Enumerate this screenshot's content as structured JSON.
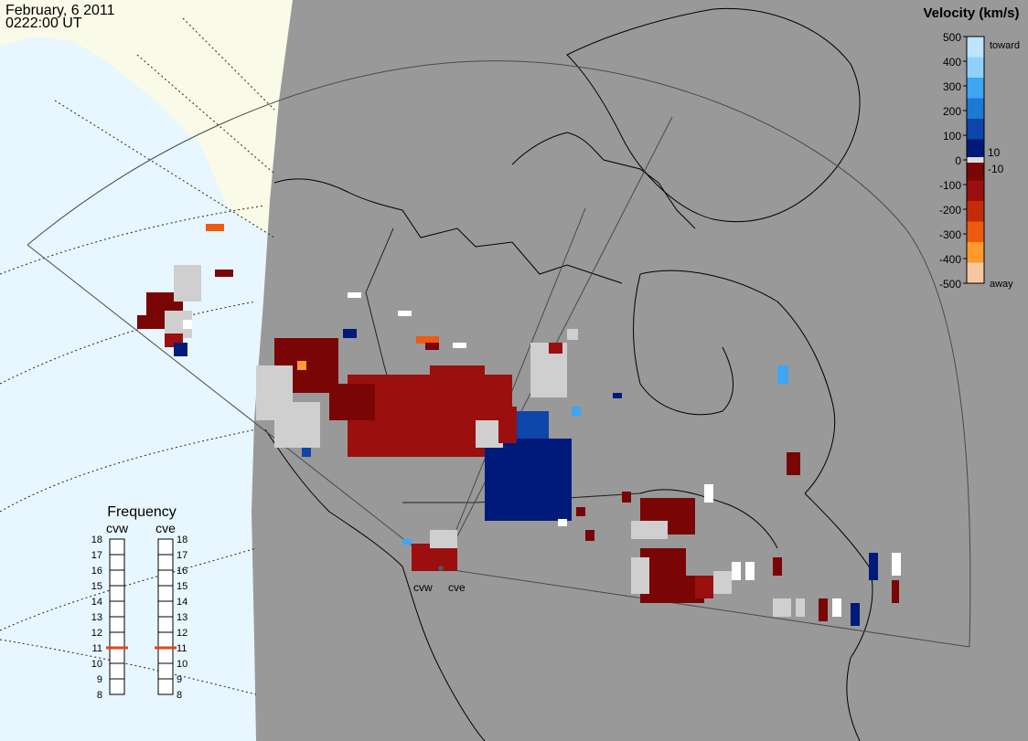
{
  "header": {
    "date": "February, 6 2011",
    "time": "0222:00 UT"
  },
  "velocity_scale": {
    "title": "Velocity (km/s)",
    "ticks": [
      "500",
      "400",
      "300",
      "200",
      "100",
      "0",
      "-100",
      "-200",
      "-300",
      "-400",
      "-500"
    ],
    "inner_labels": [
      "10",
      "-10"
    ],
    "end_labels": [
      "toward",
      "away"
    ],
    "toward_colors": [
      "#bfe4ff",
      "#8fd0ff",
      "#3ea6f2",
      "#1d78d6",
      "#0d45a8",
      "#001a7a"
    ],
    "away_colors": [
      "#f7c7a0",
      "#ff9a2e",
      "#ef5a12",
      "#c32c08",
      "#9b0f0f",
      "#7a0505"
    ]
  },
  "frequency": {
    "title": "Frequency",
    "radars": [
      {
        "name": "cvw",
        "value": 11
      },
      {
        "name": "cve",
        "value": 11
      }
    ],
    "scale_labels": [
      "18",
      "17",
      "16",
      "15",
      "14",
      "13",
      "12",
      "11",
      "10",
      "9",
      "8"
    ]
  },
  "site_labels": [
    "cvw",
    "cve"
  ],
  "colors": {
    "ocean": "#e8f6ff",
    "land_night": "#999999",
    "land_day": "#fafae8",
    "fov_line": "#4a4a4a",
    "coast": "#000000",
    "freq_marker": "#e0461a"
  }
}
